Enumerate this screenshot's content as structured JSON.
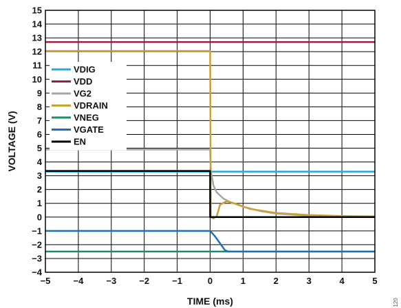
{
  "figure_id": "120",
  "chart_data": {
    "type": "line",
    "xlabel": "TIME (ms)",
    "ylabel": "VOLTAGE (V)",
    "xlim": [
      -5,
      5
    ],
    "ylim": [
      -4,
      15
    ],
    "xticks": [
      -5,
      -4,
      -3,
      -2,
      -1,
      0,
      1,
      2,
      3,
      4,
      5
    ],
    "yticks": [
      -4,
      -3,
      -2,
      -1,
      0,
      1,
      2,
      3,
      4,
      5,
      6,
      7,
      8,
      9,
      10,
      11,
      12,
      13,
      14,
      15
    ],
    "xtick_labels": [
      "−5",
      "−4",
      "−3",
      "−2",
      "−1",
      "0",
      "1",
      "2",
      "3",
      "4",
      "5"
    ],
    "ytick_labels": [
      "−4",
      "−3",
      "−2",
      "−1",
      "0",
      "1",
      "2",
      "3",
      "4",
      "5",
      "6",
      "7",
      "8",
      "9",
      "10",
      "11",
      "12",
      "13",
      "14",
      "15"
    ],
    "grid": true,
    "legend_position": "upper-left",
    "series": [
      {
        "name": "VDIG",
        "color": "#2aa6d9",
        "x": [
          -5,
          0,
          0.05,
          5
        ],
        "y": [
          3.3,
          3.3,
          3.3,
          3.3
        ]
      },
      {
        "name": "VDD",
        "color": "#9b1c3f",
        "x": [
          -5,
          5
        ],
        "y": [
          12.7,
          12.7
        ]
      },
      {
        "name": "VG2",
        "color": "#a6a6a6",
        "x": [
          -5,
          0,
          0.02,
          0.1,
          0.2,
          0.4,
          0.6,
          1.0,
          1.5,
          2.0,
          3.0,
          4.0,
          5.0
        ],
        "y": [
          4.9,
          4.9,
          3.4,
          2.3,
          1.8,
          1.35,
          1.1,
          0.75,
          0.45,
          0.25,
          0.1,
          0.05,
          0.03
        ]
      },
      {
        "name": "VDRAIN",
        "color": "#c9a033",
        "x": [
          -5,
          0,
          0.02,
          0.1,
          0.2,
          0.3,
          0.5,
          0.8,
          1.2,
          2.0,
          3.0,
          4.0,
          5.0
        ],
        "y": [
          12.05,
          12.05,
          0.0,
          -0.1,
          0.05,
          0.9,
          1.15,
          0.95,
          0.6,
          0.3,
          0.15,
          0.08,
          0.05
        ]
      },
      {
        "name": "VNEG",
        "color": "#1b8a6e",
        "x": [
          -5,
          5
        ],
        "y": [
          -2.5,
          -2.5
        ]
      },
      {
        "name": "VGATE",
        "color": "#1f6fb8",
        "x": [
          -5,
          0,
          0.15,
          0.3,
          0.45,
          0.55,
          5
        ],
        "y": [
          -1.0,
          -1.0,
          -1.4,
          -1.9,
          -2.4,
          -2.5,
          -2.5
        ]
      },
      {
        "name": "EN",
        "color": "#000000",
        "x": [
          -5,
          0,
          0,
          5
        ],
        "y": [
          3.35,
          3.35,
          0.0,
          0.0
        ]
      }
    ]
  }
}
